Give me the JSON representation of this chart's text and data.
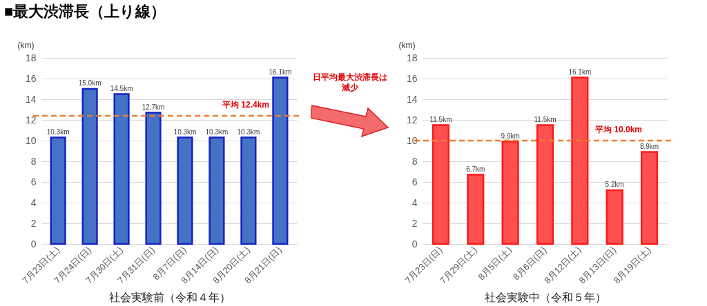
{
  "chart_data": [
    {
      "type": "bar",
      "title": "■最大渋滞長（上り線）",
      "xlabel": "社会実験前（令和４年）",
      "ylabel": "(km)",
      "categories": [
        "7月23日(土)",
        "7月24日(日)",
        "7月30日(土)",
        "7月31日(日)",
        "8月7日(日)",
        "8月14日(日)",
        "8月20日(土)",
        "8月21日(日)"
      ],
      "values": [
        10.3,
        15.0,
        14.5,
        12.7,
        10.3,
        10.3,
        10.3,
        16.1
      ],
      "value_labels": [
        "10.3km",
        "15.0km",
        "14.5km",
        "12.7km",
        "10.3km",
        "10.3km",
        "10.3km",
        "16.1km"
      ],
      "color": "#4472c4",
      "ylim": [
        0,
        18
      ],
      "yticks": [
        0,
        2,
        4,
        6,
        8,
        10,
        12,
        14,
        16,
        18
      ],
      "grid": "y",
      "ref_lines": [
        {
          "axis": "y",
          "value": 12.4,
          "label": "平均 12.4km",
          "color": "#ed7d31",
          "line_style": "dashed"
        }
      ]
    },
    {
      "type": "bar",
      "xlabel": "社会実験中（令和５年）",
      "ylabel": "(km)",
      "categories": [
        "7月23日(日)",
        "7月29日(土)",
        "8月5日(土)",
        "8月6日(日)",
        "8月12日(土)",
        "8月13日(日)",
        "8月19日(土)"
      ],
      "values": [
        11.5,
        6.7,
        9.9,
        11.5,
        16.1,
        5.2,
        8.9
      ],
      "value_labels": [
        "11.5km",
        "6.7km",
        "9.9km",
        "11.5km",
        "16.1km",
        "5.2km",
        "8.9km"
      ],
      "color": "#ff5050",
      "ylim": [
        0,
        18
      ],
      "yticks": [
        0,
        2,
        4,
        6,
        8,
        10,
        12,
        14,
        16,
        18
      ],
      "grid": "y",
      "annotations": [
        "日平均最大渋滞長は減少"
      ],
      "ref_lines": [
        {
          "axis": "y",
          "value": 10.0,
          "label": "平均 10.0km",
          "color": "#ed7d31",
          "line_style": "dashed"
        }
      ]
    }
  ]
}
